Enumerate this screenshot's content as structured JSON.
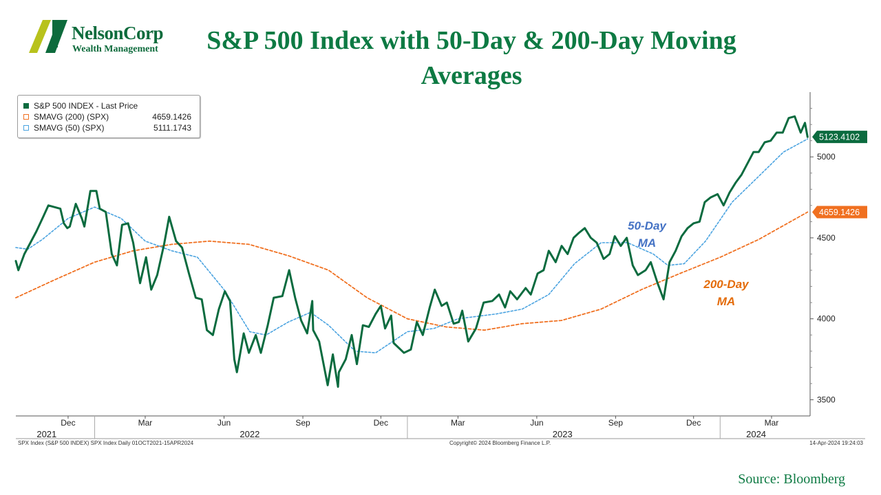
{
  "logo": {
    "name": "NelsonCorp",
    "subtitle": "Wealth Management"
  },
  "title": "S&P 500 Index with 50-Day & 200-Day Moving Averages",
  "source": "Source: Bloomberg",
  "legend": [
    {
      "name": "S&P 500 INDEX - Last Price",
      "value": "",
      "color": "#0b6b3f"
    },
    {
      "name": "SMAVG (200) (SPX)",
      "value": "4659.1426",
      "color": "#f07020"
    },
    {
      "name": "SMAVG (50) (SPX)",
      "value": "5111.1743",
      "color": "#4aa3e0"
    }
  ],
  "annotations": {
    "ma50": {
      "line1": "50-Day",
      "line2": "MA"
    },
    "ma200": {
      "line1": "200-Day",
      "line2": "MA"
    }
  },
  "footer": {
    "left": "SPX Index (S&P 500 INDEX) SPX Index  Daily 01OCT2021-15APR2024",
    "center": "Copyright© 2024 Bloomberg Finance L.P.",
    "right": "14-Apr-2024 19:24:03"
  },
  "chart_data": {
    "type": "line",
    "xrange": [
      "2021-10-01",
      "2024-04-15"
    ],
    "ylim": [
      3400,
      5400
    ],
    "yticks": [
      3500,
      4000,
      4500,
      5000
    ],
    "grid": false,
    "legend_position": "top-left",
    "month_ticks": [
      {
        "date": "2021-12-01",
        "label": "Dec"
      },
      {
        "date": "2022-03-01",
        "label": "Mar"
      },
      {
        "date": "2022-06-01",
        "label": "Jun"
      },
      {
        "date": "2022-09-01",
        "label": "Sep"
      },
      {
        "date": "2022-12-01",
        "label": "Dec"
      },
      {
        "date": "2023-03-01",
        "label": "Mar"
      },
      {
        "date": "2023-06-01",
        "label": "Jun"
      },
      {
        "date": "2023-09-01",
        "label": "Sep"
      },
      {
        "date": "2023-12-01",
        "label": "Dec"
      },
      {
        "date": "2024-03-01",
        "label": "Mar"
      }
    ],
    "year_labels": [
      {
        "date": "2021-11-06",
        "label": "2021"
      },
      {
        "date": "2022-07-01",
        "label": "2022"
      },
      {
        "date": "2023-07-01",
        "label": "2023"
      },
      {
        "date": "2024-02-12",
        "label": "2024"
      }
    ],
    "year_boundaries": [
      "2022-01-01",
      "2023-01-01",
      "2024-01-01"
    ],
    "last_value_tags": [
      {
        "value": 5123.4102,
        "label": "5123.4102",
        "color": "#0b6b3f"
      },
      {
        "value": 4659.1426,
        "label": "4659.1426",
        "color": "#f07020"
      }
    ],
    "series": [
      {
        "name": "S&P 500 INDEX - Last Price",
        "color": "#0b6b3f",
        "style": "solid",
        "points": [
          [
            "2021-10-01",
            4357
          ],
          [
            "2021-10-04",
            4300
          ],
          [
            "2021-10-11",
            4400
          ],
          [
            "2021-10-18",
            4470
          ],
          [
            "2021-10-25",
            4540
          ],
          [
            "2021-11-02",
            4630
          ],
          [
            "2021-11-08",
            4700
          ],
          [
            "2021-11-15",
            4690
          ],
          [
            "2021-11-22",
            4680
          ],
          [
            "2021-11-26",
            4590
          ],
          [
            "2021-11-30",
            4560
          ],
          [
            "2021-12-03",
            4570
          ],
          [
            "2021-12-10",
            4710
          ],
          [
            "2021-12-17",
            4620
          ],
          [
            "2021-12-20",
            4570
          ],
          [
            "2021-12-27",
            4790
          ],
          [
            "2022-01-03",
            4790
          ],
          [
            "2022-01-07",
            4680
          ],
          [
            "2022-01-14",
            4660
          ],
          [
            "2022-01-21",
            4400
          ],
          [
            "2022-01-27",
            4330
          ],
          [
            "2022-02-02",
            4580
          ],
          [
            "2022-02-09",
            4590
          ],
          [
            "2022-02-15",
            4470
          ],
          [
            "2022-02-23",
            4220
          ],
          [
            "2022-03-02",
            4380
          ],
          [
            "2022-03-08",
            4180
          ],
          [
            "2022-03-15",
            4270
          ],
          [
            "2022-03-23",
            4460
          ],
          [
            "2022-03-29",
            4630
          ],
          [
            "2022-04-06",
            4480
          ],
          [
            "2022-04-13",
            4440
          ],
          [
            "2022-04-21",
            4280
          ],
          [
            "2022-04-29",
            4130
          ],
          [
            "2022-05-06",
            4120
          ],
          [
            "2022-05-12",
            3930
          ],
          [
            "2022-05-19",
            3900
          ],
          [
            "2022-05-26",
            4060
          ],
          [
            "2022-06-02",
            4170
          ],
          [
            "2022-06-08",
            4110
          ],
          [
            "2022-06-13",
            3750
          ],
          [
            "2022-06-16",
            3670
          ],
          [
            "2022-06-24",
            3910
          ],
          [
            "2022-06-30",
            3790
          ],
          [
            "2022-07-08",
            3900
          ],
          [
            "2022-07-14",
            3790
          ],
          [
            "2022-07-22",
            3960
          ],
          [
            "2022-07-29",
            4130
          ],
          [
            "2022-08-08",
            4140
          ],
          [
            "2022-08-16",
            4300
          ],
          [
            "2022-08-23",
            4130
          ],
          [
            "2022-08-30",
            3990
          ],
          [
            "2022-09-06",
            3910
          ],
          [
            "2022-09-12",
            4110
          ],
          [
            "2022-09-13",
            3930
          ],
          [
            "2022-09-20",
            3860
          ],
          [
            "2022-09-30",
            3590
          ],
          [
            "2022-10-06",
            3780
          ],
          [
            "2022-10-12",
            3580
          ],
          [
            "2022-10-13",
            3670
          ],
          [
            "2022-10-21",
            3750
          ],
          [
            "2022-10-28",
            3900
          ],
          [
            "2022-11-03",
            3720
          ],
          [
            "2022-11-10",
            3960
          ],
          [
            "2022-11-17",
            3950
          ],
          [
            "2022-11-25",
            4030
          ],
          [
            "2022-12-01",
            4080
          ],
          [
            "2022-12-06",
            3940
          ],
          [
            "2022-12-13",
            4020
          ],
          [
            "2022-12-16",
            3850
          ],
          [
            "2022-12-22",
            3820
          ],
          [
            "2022-12-28",
            3790
          ],
          [
            "2023-01-05",
            3810
          ],
          [
            "2023-01-12",
            3980
          ],
          [
            "2023-01-19",
            3900
          ],
          [
            "2023-01-27",
            4070
          ],
          [
            "2023-02-02",
            4180
          ],
          [
            "2023-02-10",
            4080
          ],
          [
            "2023-02-16",
            4100
          ],
          [
            "2023-02-24",
            3970
          ],
          [
            "2023-03-02",
            3980
          ],
          [
            "2023-03-06",
            4050
          ],
          [
            "2023-03-13",
            3860
          ],
          [
            "2023-03-22",
            3940
          ],
          [
            "2023-03-31",
            4100
          ],
          [
            "2023-04-10",
            4110
          ],
          [
            "2023-04-18",
            4150
          ],
          [
            "2023-04-25",
            4070
          ],
          [
            "2023-05-01",
            4170
          ],
          [
            "2023-05-09",
            4120
          ],
          [
            "2023-05-19",
            4190
          ],
          [
            "2023-05-25",
            4150
          ],
          [
            "2023-06-02",
            4280
          ],
          [
            "2023-06-09",
            4300
          ],
          [
            "2023-06-15",
            4420
          ],
          [
            "2023-06-23",
            4350
          ],
          [
            "2023-06-30",
            4450
          ],
          [
            "2023-07-07",
            4400
          ],
          [
            "2023-07-14",
            4500
          ],
          [
            "2023-07-20",
            4530
          ],
          [
            "2023-07-27",
            4560
          ],
          [
            "2023-08-03",
            4500
          ],
          [
            "2023-08-10",
            4470
          ],
          [
            "2023-08-18",
            4370
          ],
          [
            "2023-08-25",
            4400
          ],
          [
            "2023-08-31",
            4510
          ],
          [
            "2023-09-07",
            4450
          ],
          [
            "2023-09-14",
            4500
          ],
          [
            "2023-09-21",
            4330
          ],
          [
            "2023-09-27",
            4270
          ],
          [
            "2023-10-06",
            4300
          ],
          [
            "2023-10-12",
            4350
          ],
          [
            "2023-10-20",
            4220
          ],
          [
            "2023-10-27",
            4120
          ],
          [
            "2023-11-03",
            4350
          ],
          [
            "2023-11-10",
            4420
          ],
          [
            "2023-11-17",
            4510
          ],
          [
            "2023-11-24",
            4560
          ],
          [
            "2023-12-01",
            4590
          ],
          [
            "2023-12-08",
            4600
          ],
          [
            "2023-12-14",
            4720
          ],
          [
            "2023-12-21",
            4750
          ],
          [
            "2023-12-29",
            4770
          ],
          [
            "2024-01-05",
            4700
          ],
          [
            "2024-01-12",
            4780
          ],
          [
            "2024-01-19",
            4840
          ],
          [
            "2024-01-26",
            4890
          ],
          [
            "2024-02-02",
            4960
          ],
          [
            "2024-02-09",
            5030
          ],
          [
            "2024-02-15",
            5030
          ],
          [
            "2024-02-22",
            5090
          ],
          [
            "2024-02-29",
            5100
          ],
          [
            "2024-03-07",
            5150
          ],
          [
            "2024-03-14",
            5150
          ],
          [
            "2024-03-21",
            5240
          ],
          [
            "2024-03-28",
            5250
          ],
          [
            "2024-04-04",
            5150
          ],
          [
            "2024-04-09",
            5210
          ],
          [
            "2024-04-12",
            5123
          ]
        ]
      },
      {
        "name": "SMAVG (200) (SPX)",
        "color": "#f07020",
        "style": "dashed",
        "points": [
          [
            "2021-10-01",
            4130
          ],
          [
            "2021-11-15",
            4240
          ],
          [
            "2022-01-01",
            4350
          ],
          [
            "2022-02-15",
            4420
          ],
          [
            "2022-04-01",
            4460
          ],
          [
            "2022-05-15",
            4480
          ],
          [
            "2022-06-30",
            4460
          ],
          [
            "2022-08-15",
            4390
          ],
          [
            "2022-10-01",
            4300
          ],
          [
            "2022-11-15",
            4130
          ],
          [
            "2023-01-01",
            4000
          ],
          [
            "2023-02-15",
            3950
          ],
          [
            "2023-04-01",
            3930
          ],
          [
            "2023-05-15",
            3970
          ],
          [
            "2023-06-30",
            3990
          ],
          [
            "2023-08-15",
            4060
          ],
          [
            "2023-10-01",
            4180
          ],
          [
            "2023-11-15",
            4280
          ],
          [
            "2024-01-01",
            4380
          ],
          [
            "2024-02-15",
            4490
          ],
          [
            "2024-04-12",
            4659
          ]
        ]
      },
      {
        "name": "SMAVG (50) (SPX)",
        "color": "#4aa3e0",
        "style": "dotted",
        "points": [
          [
            "2021-10-01",
            4440
          ],
          [
            "2021-10-15",
            4430
          ],
          [
            "2021-11-01",
            4490
          ],
          [
            "2021-12-01",
            4620
          ],
          [
            "2022-01-01",
            4690
          ],
          [
            "2022-02-01",
            4620
          ],
          [
            "2022-03-01",
            4480
          ],
          [
            "2022-04-01",
            4420
          ],
          [
            "2022-05-01",
            4380
          ],
          [
            "2022-06-01",
            4180
          ],
          [
            "2022-07-01",
            3920
          ],
          [
            "2022-07-20",
            3900
          ],
          [
            "2022-08-15",
            3980
          ],
          [
            "2022-09-10",
            4040
          ],
          [
            "2022-10-01",
            3960
          ],
          [
            "2022-11-01",
            3800
          ],
          [
            "2022-11-25",
            3790
          ],
          [
            "2023-01-01",
            3920
          ],
          [
            "2023-02-01",
            3940
          ],
          [
            "2023-03-01",
            4000
          ],
          [
            "2023-04-15",
            4030
          ],
          [
            "2023-05-15",
            4060
          ],
          [
            "2023-06-15",
            4150
          ],
          [
            "2023-07-15",
            4340
          ],
          [
            "2023-08-15",
            4470
          ],
          [
            "2023-09-15",
            4470
          ],
          [
            "2023-10-15",
            4400
          ],
          [
            "2023-11-01",
            4330
          ],
          [
            "2023-11-20",
            4340
          ],
          [
            "2023-12-15",
            4480
          ],
          [
            "2024-01-15",
            4720
          ],
          [
            "2024-02-15",
            4880
          ],
          [
            "2024-03-15",
            5030
          ],
          [
            "2024-04-12",
            5111
          ]
        ]
      }
    ]
  }
}
